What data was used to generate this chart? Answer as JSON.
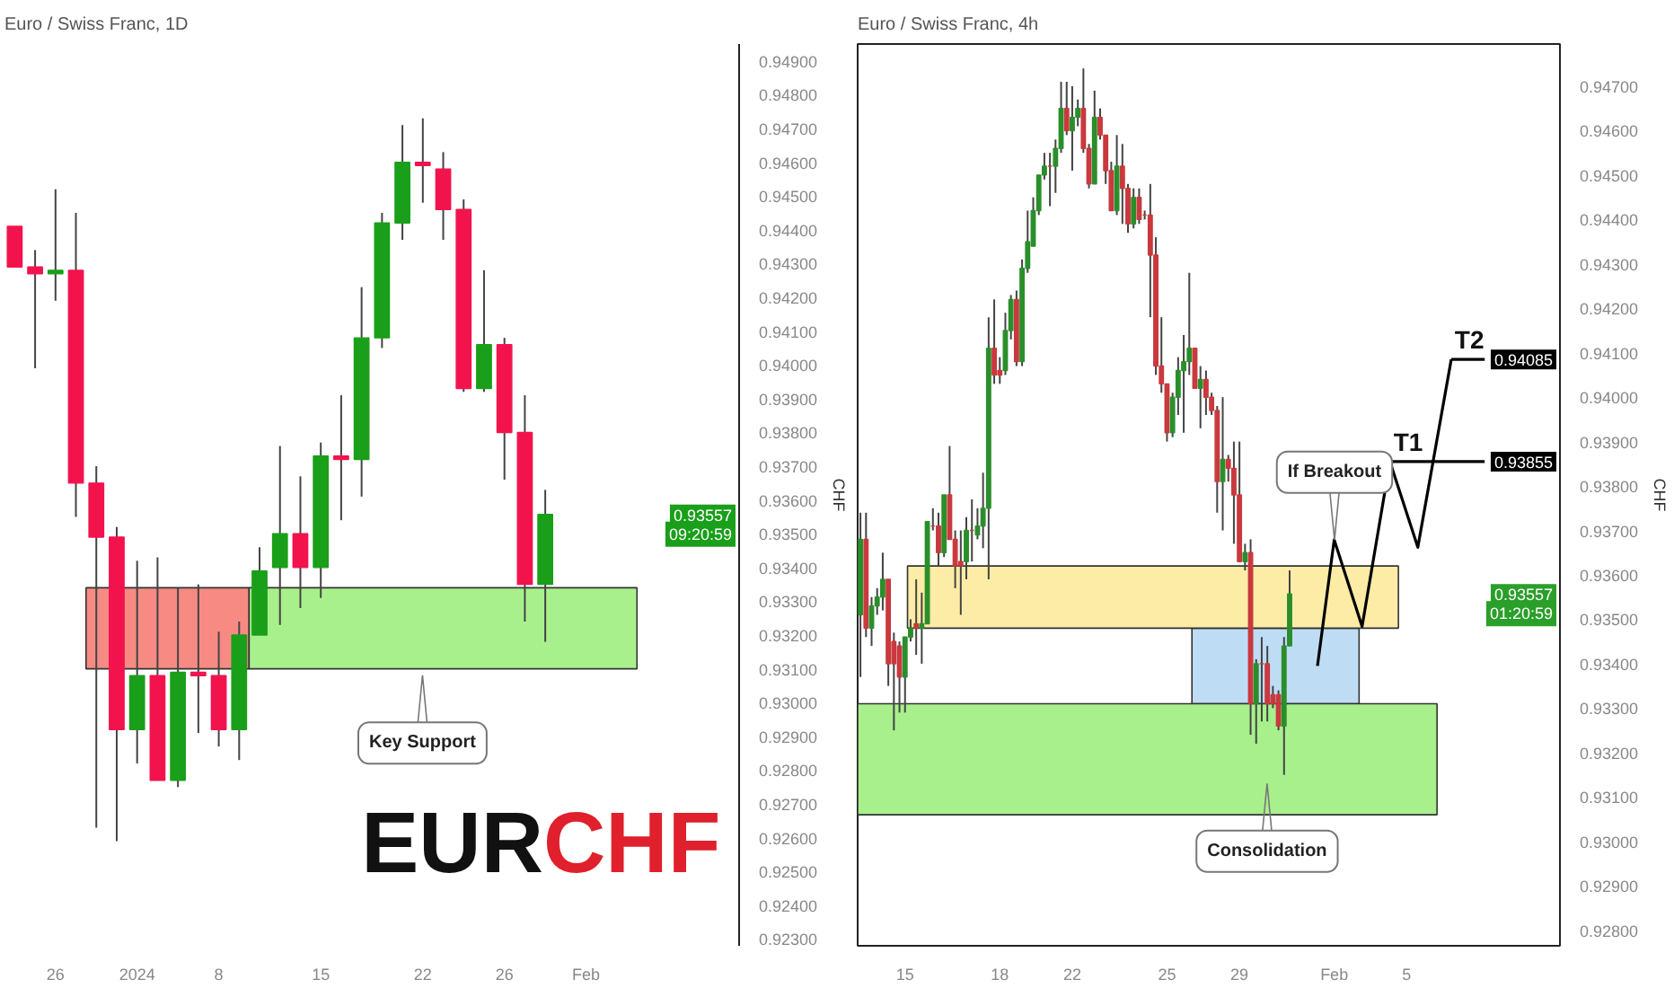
{
  "chart_data": [
    {
      "type": "candlestick",
      "title": "Euro / Swiss Franc, 1D",
      "ylabel": "CHF",
      "categories": [
        null,
        null,
        "26",
        null,
        null,
        null,
        "2024",
        null,
        null,
        null,
        "8",
        null,
        null,
        null,
        null,
        "15",
        null,
        null,
        null,
        null,
        "22",
        null,
        null,
        null,
        "26",
        null,
        null,
        null,
        "Feb",
        null,
        null,
        null,
        null,
        null,
        null,
        null
      ],
      "ohlc": [
        [
          0.9441,
          0.9441,
          0.9429,
          0.9429
        ],
        [
          0.9429,
          0.9434,
          0.9399,
          0.9427
        ],
        [
          0.9427,
          0.9452,
          0.9419,
          0.9428
        ],
        [
          0.9428,
          0.9445,
          0.9355,
          0.9365
        ],
        [
          0.9365,
          0.937,
          0.9263,
          0.9349
        ],
        [
          0.9349,
          0.9352,
          0.9259,
          0.9292
        ],
        [
          0.9292,
          0.9342,
          0.9282,
          0.9308
        ],
        [
          0.9308,
          0.9343,
          0.9277,
          0.9277
        ],
        [
          0.9277,
          0.9334,
          0.9275,
          0.9309
        ],
        [
          0.9309,
          0.9335,
          0.9291,
          0.9308
        ],
        [
          0.9308,
          0.9321,
          0.9287,
          0.9292
        ],
        [
          0.9292,
          0.9324,
          0.9283,
          0.932
        ],
        [
          0.932,
          0.9346,
          0.932,
          0.9339
        ],
        [
          0.934,
          0.9376,
          0.9323,
          0.935
        ],
        [
          0.935,
          0.9367,
          0.9328,
          0.934
        ],
        [
          0.934,
          0.9377,
          0.9331,
          0.9373
        ],
        [
          0.9373,
          0.9391,
          0.9354,
          0.9372
        ],
        [
          0.9372,
          0.9423,
          0.9361,
          0.9408
        ],
        [
          0.9408,
          0.9445,
          0.9405,
          0.9442
        ],
        [
          0.9442,
          0.9471,
          0.9437,
          0.946
        ],
        [
          0.946,
          0.9473,
          0.9448,
          0.9459
        ],
        [
          0.9458,
          0.9463,
          0.9437,
          0.9446
        ],
        [
          0.9446,
          0.9449,
          0.9392,
          0.9393
        ],
        [
          0.9393,
          0.9428,
          0.9392,
          0.9406
        ],
        [
          0.9406,
          0.9408,
          0.9366,
          0.938
        ],
        [
          0.938,
          0.9391,
          0.9324,
          0.9335
        ],
        [
          0.9335,
          0.9363,
          0.9318,
          0.93557
        ],
        null,
        null,
        null,
        null,
        null,
        null,
        null,
        null,
        null
      ],
      "colors": [
        "#f2134d",
        "#f2134d",
        "#1a9f1a",
        "#f2134d",
        "#f2134d",
        "#f2134d",
        "#1a9f1a",
        "#f2134d",
        "#1a9f1a",
        "#f2134d",
        "#f2134d",
        "#1a9f1a",
        "#1a9f1a",
        "#1a9f1a",
        "#f2134d",
        "#1a9f1a",
        "#f2134d",
        "#1a9f1a",
        "#1a9f1a",
        "#1a9f1a",
        "#f2134d",
        "#f2134d",
        "#f2134d",
        "#1a9f1a",
        "#f2134d",
        "#f2134d",
        "#1a9f1a",
        null,
        null,
        null,
        null,
        null,
        null,
        null,
        null,
        null
      ],
      "bands": [
        {
          "axis": "y",
          "from": 0.931,
          "to": 0.9334,
          "color": "#f78b84"
        },
        {
          "axis": "y",
          "from": 0.931,
          "to": 0.9334,
          "color": "#a8f08c"
        }
      ],
      "ylim": [
        0.9228,
        0.9495
      ],
      "yticks": [
        {
          "value": 0.923,
          "label": "0.92300"
        },
        {
          "value": 0.924,
          "label": "0.92400"
        },
        {
          "value": 0.925,
          "label": "0.92500"
        },
        {
          "value": 0.926,
          "label": "0.92600"
        },
        {
          "value": 0.927,
          "label": "0.92700"
        },
        {
          "value": 0.928,
          "label": "0.92800"
        },
        {
          "value": 0.929,
          "label": "0.92900"
        },
        {
          "value": 0.93,
          "label": "0.93000"
        },
        {
          "value": 0.931,
          "label": "0.93100"
        },
        {
          "value": 0.932,
          "label": "0.93200"
        },
        {
          "value": 0.933,
          "label": "0.93300"
        },
        {
          "value": 0.934,
          "label": "0.93400"
        },
        {
          "value": 0.935,
          "label": "0.93500"
        },
        {
          "value": 0.936,
          "label": "0.93600"
        },
        {
          "value": 0.937,
          "label": "0.93700"
        },
        {
          "value": 0.938,
          "label": "0.93800"
        },
        {
          "value": 0.939,
          "label": "0.93900"
        },
        {
          "value": 0.94,
          "label": "0.94000"
        },
        {
          "value": 0.941,
          "label": "0.94100"
        },
        {
          "value": 0.942,
          "label": "0.94200"
        },
        {
          "value": 0.943,
          "label": "0.94300"
        },
        {
          "value": 0.944,
          "label": "0.94400"
        },
        {
          "value": 0.945,
          "label": "0.94500"
        },
        {
          "value": 0.946,
          "label": "0.94600"
        },
        {
          "value": 0.947,
          "label": "0.94700"
        },
        {
          "value": 0.948,
          "label": "0.94800"
        },
        {
          "value": 0.949,
          "label": "0.94900"
        }
      ],
      "annotations": [
        "Key Support",
        "EURCHF",
        {
          "text": "0.93557",
          "y": 0.93557
        },
        "09:20:59"
      ],
      "grid": false
    },
    {
      "type": "candlestick",
      "title": "Euro / Swiss Franc, 4h",
      "ylabel": "CHF",
      "categories": [
        null,
        null,
        null,
        null,
        null,
        null,
        null,
        null,
        "15",
        null,
        null,
        null,
        null,
        null,
        null,
        null,
        null,
        null,
        null,
        null,
        null,
        null,
        null,
        null,
        null,
        "18",
        null,
        null,
        null,
        null,
        null,
        null,
        null,
        null,
        null,
        null,
        null,
        null,
        "22",
        null,
        null,
        null,
        null,
        null,
        null,
        null,
        null,
        null,
        null,
        null,
        null,
        null,
        null,
        null,
        null,
        "25",
        null,
        null,
        null,
        null,
        null,
        null,
        null,
        null,
        null,
        null,
        null,
        null,
        "29",
        null,
        null,
        null,
        null,
        null,
        null,
        null,
        null,
        null,
        null,
        null,
        null,
        null,
        null,
        null,
        null,
        "Feb",
        null,
        null,
        null,
        null,
        null,
        null,
        null,
        null,
        null,
        null,
        null,
        null,
        "5",
        null,
        null,
        null,
        null,
        null,
        null,
        null,
        null,
        null,
        null,
        null,
        null,
        null,
        null,
        null,
        null,
        null,
        null,
        null,
        null,
        null,
        null,
        null,
        null,
        null,
        null,
        null
      ],
      "ohlc": [
        [
          0.9351,
          0.9374,
          0.9337,
          0.9368
        ],
        [
          0.9368,
          0.9374,
          0.9346,
          0.9348
        ],
        [
          0.9348,
          0.9355,
          0.9344,
          0.9353
        ],
        [
          0.9353,
          0.9357,
          0.9351,
          0.9355
        ],
        [
          0.9355,
          0.9365,
          0.9352,
          0.9359
        ],
        [
          0.9359,
          0.9359,
          0.9335,
          0.934
        ],
        [
          0.9345,
          0.9347,
          0.9325,
          0.934
        ],
        [
          0.9344,
          0.9345,
          0.9329,
          0.9337
        ],
        [
          0.9337,
          0.9346,
          0.9329,
          0.9346
        ],
        [
          0.9346,
          0.935,
          0.9345,
          0.9348
        ],
        [
          0.9349,
          0.9359,
          0.9342,
          0.9348
        ],
        [
          0.9348,
          0.9356,
          0.934,
          0.9349
        ],
        [
          0.9349,
          0.9372,
          0.9349,
          0.9372
        ],
        [
          0.9371,
          0.9375,
          0.937,
          0.9371
        ],
        [
          0.9371,
          0.9374,
          0.9362,
          0.9365
        ],
        [
          0.9365,
          0.9378,
          0.9364,
          0.9378
        ],
        [
          0.9378,
          0.9389,
          0.9368,
          0.9368
        ],
        [
          0.9368,
          0.937,
          0.9357,
          0.9362
        ],
        [
          0.9363,
          0.937,
          0.9351,
          0.9362
        ],
        [
          0.9363,
          0.9373,
          0.9359,
          0.937
        ],
        [
          0.937,
          0.9377,
          0.9363,
          0.937
        ],
        [
          0.9369,
          0.9375,
          0.9368,
          0.9371
        ],
        [
          0.9371,
          0.9383,
          0.9366,
          0.9375
        ],
        [
          0.9375,
          0.9418,
          0.9359,
          0.9411
        ],
        [
          0.9411,
          0.9422,
          0.9403,
          0.9405
        ],
        [
          0.9406,
          0.9409,
          0.9403,
          0.9405
        ],
        [
          0.9406,
          0.9419,
          0.9405,
          0.9415
        ],
        [
          0.9415,
          0.9423,
          0.9413,
          0.9422
        ],
        [
          0.9422,
          0.9424,
          0.9407,
          0.9408
        ],
        [
          0.9408,
          0.9431,
          0.9407,
          0.9429
        ],
        [
          0.9429,
          0.9442,
          0.9428,
          0.9435
        ],
        [
          0.9434,
          0.9445,
          0.9434,
          0.9442
        ],
        [
          0.9442,
          0.945,
          0.9441,
          0.945
        ],
        [
          0.945,
          0.9455,
          0.9449,
          0.9452
        ],
        [
          0.9452,
          0.9455,
          0.9443,
          0.9452
        ],
        [
          0.9452,
          0.9458,
          0.9446,
          0.9456
        ],
        [
          0.9456,
          0.9471,
          0.9455,
          0.9465
        ],
        [
          0.9465,
          0.9471,
          0.9459,
          0.946
        ],
        [
          0.946,
          0.947,
          0.9451,
          0.9463
        ],
        [
          0.9463,
          0.9467,
          0.9461,
          0.9465
        ],
        [
          0.9465,
          0.9474,
          0.9455,
          0.9456
        ],
        [
          0.9456,
          0.9457,
          0.9447,
          0.9448
        ],
        [
          0.9448,
          0.9469,
          0.9448,
          0.9463
        ],
        [
          0.9463,
          0.9465,
          0.9458,
          0.9459
        ],
        [
          0.9459,
          0.9459,
          0.9448,
          0.9451
        ],
        [
          0.9451,
          0.9453,
          0.9442,
          0.9442
        ],
        [
          0.9442,
          0.9459,
          0.9441,
          0.9452
        ],
        [
          0.9452,
          0.9457,
          0.9439,
          0.9447
        ],
        [
          0.9447,
          0.9448,
          0.9437,
          0.9439
        ],
        [
          0.9439,
          0.9447,
          0.9438,
          0.9445
        ],
        [
          0.9445,
          0.9447,
          0.9439,
          0.944
        ],
        [
          0.9441,
          0.9442,
          0.944,
          0.9441
        ],
        [
          0.9441,
          0.9448,
          0.9418,
          0.9432
        ],
        [
          0.9432,
          0.9436,
          0.9405,
          0.9407
        ],
        [
          0.9407,
          0.9418,
          0.9401,
          0.9403
        ],
        [
          0.9403,
          0.9403,
          0.939,
          0.9392
        ],
        [
          0.9392,
          0.9401,
          0.9391,
          0.94
        ],
        [
          0.94,
          0.9409,
          0.9396,
          0.9406
        ],
        [
          0.9406,
          0.9414,
          0.9392,
          0.9408
        ],
        [
          0.9408,
          0.9428,
          0.9405,
          0.9411
        ],
        [
          0.9411,
          0.9411,
          0.9402,
          0.9402
        ],
        [
          0.9402,
          0.9407,
          0.9393,
          0.9404
        ],
        [
          0.9404,
          0.9406,
          0.9396,
          0.94
        ],
        [
          0.94,
          0.9401,
          0.9396,
          0.9397
        ],
        [
          0.9397,
          0.9398,
          0.9374,
          0.9381
        ],
        [
          0.9381,
          0.94,
          0.937,
          0.9386
        ],
        [
          0.9386,
          0.9387,
          0.9381,
          0.9384
        ],
        [
          0.9384,
          0.939,
          0.9367,
          0.9378
        ],
        [
          0.9378,
          0.939,
          0.9363,
          0.9363
        ],
        [
          0.9363,
          0.9367,
          0.9361,
          0.9365
        ],
        [
          0.9365,
          0.9368,
          0.9324,
          0.9331
        ],
        [
          0.9331,
          0.9341,
          0.9322,
          0.934
        ],
        [
          0.934,
          0.9346,
          0.9327,
          0.934
        ],
        [
          0.934,
          0.9344,
          0.9327,
          0.9331
        ],
        [
          0.9333,
          0.9335,
          0.933,
          0.9331
        ],
        [
          0.9333,
          0.9334,
          0.9325,
          0.9326
        ],
        [
          0.9326,
          0.9346,
          0.9315,
          0.9344
        ],
        [
          0.9344,
          0.9361,
          0.9344,
          0.93557
        ],
        null,
        null,
        null,
        null,
        null,
        null,
        null,
        null,
        null,
        null,
        null,
        null,
        null,
        null,
        null,
        null,
        null,
        null,
        null,
        null,
        null,
        null,
        null,
        null,
        null,
        null,
        null,
        null,
        null,
        null,
        null,
        null,
        null,
        null,
        null,
        null,
        null,
        null,
        null,
        null,
        null,
        null,
        null,
        null,
        null,
        null,
        null,
        null
      ],
      "colors": [
        "#2a8f2a",
        "#c9393d",
        "#2a8f2a",
        "#2a8f2a",
        "#2a8f2a",
        "#c9393d",
        "#c9393d",
        "#c9393d",
        "#2a8f2a",
        "#2a8f2a",
        "#c9393d",
        "#2a8f2a",
        "#2a8f2a",
        "#c9393d",
        "#c9393d",
        "#2a8f2a",
        "#c9393d",
        "#c9393d",
        "#c9393d",
        "#2a8f2a",
        "#c9393d",
        "#2a8f2a",
        "#2a8f2a",
        "#2a8f2a",
        "#c9393d",
        "#c9393d",
        "#2a8f2a",
        "#2a8f2a",
        "#c9393d",
        "#2a8f2a",
        "#2a8f2a",
        "#2a8f2a",
        "#2a8f2a",
        "#2a8f2a",
        "#c9393d",
        "#2a8f2a",
        "#2a8f2a",
        "#c9393d",
        "#2a8f2a",
        "#2a8f2a",
        "#c9393d",
        "#c9393d",
        "#2a8f2a",
        "#c9393d",
        "#c9393d",
        "#c9393d",
        "#2a8f2a",
        "#c9393d",
        "#c9393d",
        "#2a8f2a",
        "#c9393d",
        "#c9393d",
        "#c9393d",
        "#c9393d",
        "#c9393d",
        "#c9393d",
        "#2a8f2a",
        "#2a8f2a",
        "#2a8f2a",
        "#2a8f2a",
        "#c9393d",
        "#2a8f2a",
        "#c9393d",
        "#c9393d",
        "#c9393d",
        "#2a8f2a",
        "#c9393d",
        "#c9393d",
        "#c9393d",
        "#2a8f2a",
        "#c9393d",
        "#2a8f2a",
        "#c9393d",
        "#c9393d",
        "#c9393d",
        "#c9393d",
        "#2a8f2a",
        "#2a8f2a",
        null,
        null,
        null,
        null,
        null,
        null,
        null,
        null,
        null,
        null,
        null,
        null,
        null,
        null,
        null,
        null,
        null,
        null,
        null,
        null,
        null,
        null,
        null,
        null,
        null,
        null,
        null,
        null,
        null,
        null,
        null,
        null,
        null,
        null,
        null,
        null,
        null,
        null,
        null,
        null,
        null,
        null,
        null,
        null,
        null,
        null,
        null,
        null
      ],
      "series": [
        {
          "type": "line",
          "color": "#000000",
          "values": [
            null,
            null,
            null,
            null,
            null,
            null,
            null,
            null,
            null,
            null,
            null,
            null,
            null,
            null,
            null,
            null,
            null,
            null,
            null,
            null,
            null,
            null,
            null,
            null,
            null,
            null,
            null,
            null,
            null,
            null,
            null,
            null,
            null,
            null,
            null,
            null,
            null,
            null,
            null,
            null,
            null,
            null,
            null,
            null,
            null,
            null,
            null,
            null,
            null,
            null,
            null,
            null,
            null,
            null,
            null,
            null,
            null,
            null,
            null,
            null,
            null,
            null,
            null,
            null,
            null,
            null,
            null,
            null,
            null,
            null,
            null,
            null,
            null,
            null,
            null,
            null,
            null,
            null,
            null,
            null,
            null,
            null,
            0.93395,
            null,
            null,
            0.93679,
            null,
            null,
            null,
            null,
            0.93484,
            null,
            null,
            null,
            null,
            0.93855,
            null,
            null,
            null,
            null,
            0.93662,
            null,
            null,
            null,
            null,
            null,
            0.94085,
            null,
            null,
            null,
            null,
            null,
            null,
            null,
            null,
            null,
            null,
            null,
            null,
            null,
            null,
            null,
            null,
            null,
            null,
            null
          ]
        },
        {
          "type": "line",
          "color": "#000000",
          "values": [
            null,
            null,
            null,
            null,
            null,
            null,
            null,
            null,
            null,
            null,
            null,
            null,
            null,
            null,
            null,
            null,
            null,
            null,
            null,
            null,
            null,
            null,
            null,
            null,
            null,
            null,
            null,
            null,
            null,
            null,
            null,
            null,
            null,
            null,
            null,
            null,
            null,
            null,
            null,
            null,
            null,
            null,
            null,
            null,
            null,
            null,
            null,
            null,
            null,
            null,
            null,
            null,
            null,
            null,
            null,
            null,
            null,
            null,
            null,
            null,
            null,
            null,
            null,
            null,
            null,
            null,
            null,
            null,
            null,
            null,
            null,
            null,
            null,
            null,
            null,
            null,
            null,
            null,
            null,
            null,
            null,
            null,
            null,
            null,
            null,
            null,
            null,
            null,
            null,
            null,
            null,
            null,
            null,
            null,
            null,
            0.93855,
            0.93855,
            0.93855,
            0.93855,
            0.93855,
            0.93855,
            0.93855,
            0.93855,
            0.93855,
            0.93855,
            0.93855,
            0.93855,
            0.93855,
            0.93855,
            0.93855,
            0.93855,
            0.93855,
            0.93855,
            null,
            null,
            null,
            null,
            null,
            null,
            null,
            null,
            null,
            null,
            null,
            null,
            null
          ]
        },
        {
          "type": "line",
          "color": "#000000",
          "values": [
            null,
            null,
            null,
            null,
            null,
            null,
            null,
            null,
            null,
            null,
            null,
            null,
            null,
            null,
            null,
            null,
            null,
            null,
            null,
            null,
            null,
            null,
            null,
            null,
            null,
            null,
            null,
            null,
            null,
            null,
            null,
            null,
            null,
            null,
            null,
            null,
            null,
            null,
            null,
            null,
            null,
            null,
            null,
            null,
            null,
            null,
            null,
            null,
            null,
            null,
            null,
            null,
            null,
            null,
            null,
            null,
            null,
            null,
            null,
            null,
            null,
            null,
            null,
            null,
            null,
            null,
            null,
            null,
            null,
            null,
            null,
            null,
            null,
            null,
            null,
            null,
            null,
            null,
            null,
            null,
            null,
            null,
            null,
            null,
            null,
            null,
            null,
            null,
            null,
            null,
            null,
            null,
            null,
            null,
            null,
            null,
            null,
            null,
            null,
            null,
            null,
            null,
            null,
            null,
            null,
            null,
            0.94085,
            0.94085,
            0.94085,
            0.94085,
            0.94085,
            0.94085,
            0.94085,
            null,
            null,
            null,
            null,
            null,
            null,
            null,
            null,
            null,
            null,
            null,
            null,
            null
          ]
        }
      ],
      "bands": [
        {
          "axis": "y",
          "from": 0.9331,
          "to": 0.9348,
          "color": "#bfdcf5"
        },
        {
          "axis": "y",
          "from": 0.9348,
          "to": 0.9362,
          "color": "#fdeca6"
        },
        {
          "axis": "y",
          "from": 0.9306,
          "to": 0.9331,
          "color": "#a8f08c"
        }
      ],
      "ylim": [
        0.92765,
        0.94795
      ],
      "yticks": [
        {
          "value": 0.928,
          "label": "0.92800"
        },
        {
          "value": 0.929,
          "label": "0.92900"
        },
        {
          "value": 0.93,
          "label": "0.93000"
        },
        {
          "value": 0.931,
          "label": "0.93100"
        },
        {
          "value": 0.932,
          "label": "0.93200"
        },
        {
          "value": 0.933,
          "label": "0.93300"
        },
        {
          "value": 0.934,
          "label": "0.93400"
        },
        {
          "value": 0.935,
          "label": "0.93500"
        },
        {
          "value": 0.936,
          "label": "0.93600"
        },
        {
          "value": 0.937,
          "label": "0.93700"
        },
        {
          "value": 0.938,
          "label": "0.93800"
        },
        {
          "value": 0.939,
          "label": "0.93900"
        },
        {
          "value": 0.94,
          "label": "0.94000"
        },
        {
          "value": 0.941,
          "label": "0.94100"
        },
        {
          "value": 0.942,
          "label": "0.94200"
        },
        {
          "value": 0.943,
          "label": "0.94300"
        },
        {
          "value": 0.944,
          "label": "0.94400"
        },
        {
          "value": 0.945,
          "label": "0.94500"
        },
        {
          "value": 0.946,
          "label": "0.94600"
        },
        {
          "value": 0.947,
          "label": "0.94700"
        }
      ],
      "annotations": [
        "If Breakout",
        "Consolidation",
        {
          "text": "T1",
          "y": 0.93855
        },
        {
          "text": "T2",
          "y": 0.94085
        },
        {
          "text": "0.94085",
          "y": 0.94085
        },
        {
          "text": "0.93855",
          "y": 0.93855
        },
        {
          "text": "0.93557",
          "y": 0.93557
        },
        "01:20:59"
      ],
      "grid": false
    }
  ]
}
